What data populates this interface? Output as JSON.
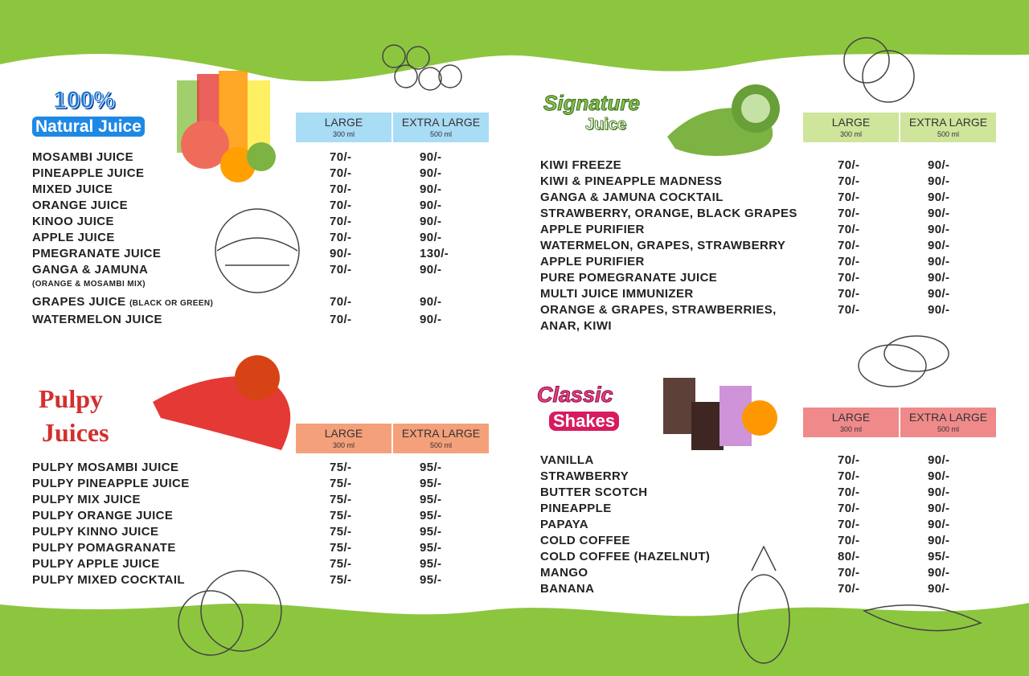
{
  "sections": [
    {
      "title": [
        "100%",
        "Natural Juice"
      ],
      "header": [
        {
          "size": "LARGE",
          "volume": "300 ml"
        },
        {
          "size": "EXTRA LARGE",
          "volume": "500 ml"
        }
      ],
      "items": [
        {
          "name": "MOSAMBI JUICE",
          "large": "70/-",
          "extra_large": "90/-"
        },
        {
          "name": "PINEAPPLE JUICE",
          "large": "70/-",
          "extra_large": "90/-"
        },
        {
          "name": "MIXED JUICE",
          "large": "70/-",
          "extra_large": "90/-"
        },
        {
          "name": "ORANGE JUICE",
          "large": "70/-",
          "extra_large": "90/-"
        },
        {
          "name": "KINOO JUICE",
          "large": "70/-",
          "extra_large": "90/-"
        },
        {
          "name": "APPLE JUICE",
          "large": "70/-",
          "extra_large": "90/-"
        },
        {
          "name": "PMEGRANATE JUICE",
          "large": "90/-",
          "extra_large": "130/-"
        },
        {
          "name": "GANGA & JAMUNA",
          "subnote": "(ORANGE & MOSAMBI MIX)",
          "large": "70/-",
          "extra_large": "90/-"
        },
        {
          "name": "GRAPES JUICE",
          "note": "(BLACK OR GREEN)",
          "large": "70/-",
          "extra_large": "90/-"
        },
        {
          "name": "WATERMELON JUICE",
          "large": "70/-",
          "extra_large": "90/-"
        }
      ]
    },
    {
      "title": [
        "Pulpy",
        "Juices"
      ],
      "header": [
        {
          "size": "LARGE",
          "volume": "300 ml"
        },
        {
          "size": "EXTRA LARGE",
          "volume": "500 ml"
        }
      ],
      "items": [
        {
          "name": "PULPY MOSAMBI JUICE",
          "large": "75/-",
          "extra_large": "95/-"
        },
        {
          "name": "PULPY PINEAPPLE JUICE",
          "large": "75/-",
          "extra_large": "95/-"
        },
        {
          "name": "PULPY MIX JUICE",
          "large": "75/-",
          "extra_large": "95/-"
        },
        {
          "name": "PULPY ORANGE JUICE",
          "large": "75/-",
          "extra_large": "95/-"
        },
        {
          "name": "PULPY KINNO JUICE",
          "large": "75/-",
          "extra_large": "95/-"
        },
        {
          "name": "PULPY POMAGRANATE",
          "large": "75/-",
          "extra_large": "95/-"
        },
        {
          "name": "PULPY APPLE JUICE",
          "large": "75/-",
          "extra_large": "95/-"
        },
        {
          "name": "PULPY MIXED COCKTAIL",
          "large": "75/-",
          "extra_large": "95/-"
        }
      ]
    },
    {
      "title": [
        "Signature",
        "Juice"
      ],
      "header": [
        {
          "size": "LARGE",
          "volume": "300 ml"
        },
        {
          "size": "EXTRA LARGE",
          "volume": "500 ml"
        }
      ],
      "items": [
        {
          "name": "KIWI FREEZE",
          "large": "70/-",
          "extra_large": "90/-"
        },
        {
          "name": "KIWI & PINEAPPLE MADNESS",
          "large": "70/-",
          "extra_large": "90/-"
        },
        {
          "name": "GANGA & JAMUNA COCKTAIL",
          "large": "70/-",
          "extra_large": "90/-"
        },
        {
          "name": "STRAWBERRY, ORANGE, BLACK GRAPES",
          "large": "70/-",
          "extra_large": "90/-"
        },
        {
          "name": "APPLE PURIFIER",
          "large": "70/-",
          "extra_large": "90/-"
        },
        {
          "name": "WATERMELON, GRAPES, STRAWBERRY",
          "large": "70/-",
          "extra_large": "90/-"
        },
        {
          "name": "APPLE PURIFIER",
          "large": "70/-",
          "extra_large": "90/-"
        },
        {
          "name": "PURE POMEGRANATE JUICE",
          "large": "70/-",
          "extra_large": "90/-"
        },
        {
          "name": "MULTI JUICE IMMUNIZER",
          "large": "70/-",
          "extra_large": "90/-"
        },
        {
          "name": "ORANGE & GRAPES, STRAWBERRIES, ANAR, KIWI",
          "large": "70/-",
          "extra_large": "90/-"
        }
      ]
    },
    {
      "title": [
        "Classic",
        "Shakes"
      ],
      "header": [
        {
          "size": "LARGE",
          "volume": "300 ml"
        },
        {
          "size": "EXTRA LARGE",
          "volume": "500 ml"
        }
      ],
      "items": [
        {
          "name": "VANILLA",
          "large": "70/-",
          "extra_large": "90/-"
        },
        {
          "name": "STRAWBERRY",
          "large": "70/-",
          "extra_large": "90/-"
        },
        {
          "name": "BUTTER SCOTCH",
          "large": "70/-",
          "extra_large": "90/-"
        },
        {
          "name": "PINEAPPLE",
          "large": "70/-",
          "extra_large": "90/-"
        },
        {
          "name": "PAPAYA",
          "large": "70/-",
          "extra_large": "90/-"
        },
        {
          "name": "COLD COFFEE",
          "large": "70/-",
          "extra_large": "90/-"
        },
        {
          "name": "COLD COFFEE (HAZELNUT)",
          "large": "80/-",
          "extra_large": "95/-"
        },
        {
          "name": "MANGO",
          "large": "70/-",
          "extra_large": "90/-"
        },
        {
          "name": "BANANA",
          "large": "70/-",
          "extra_large": "90/-"
        }
      ]
    }
  ]
}
